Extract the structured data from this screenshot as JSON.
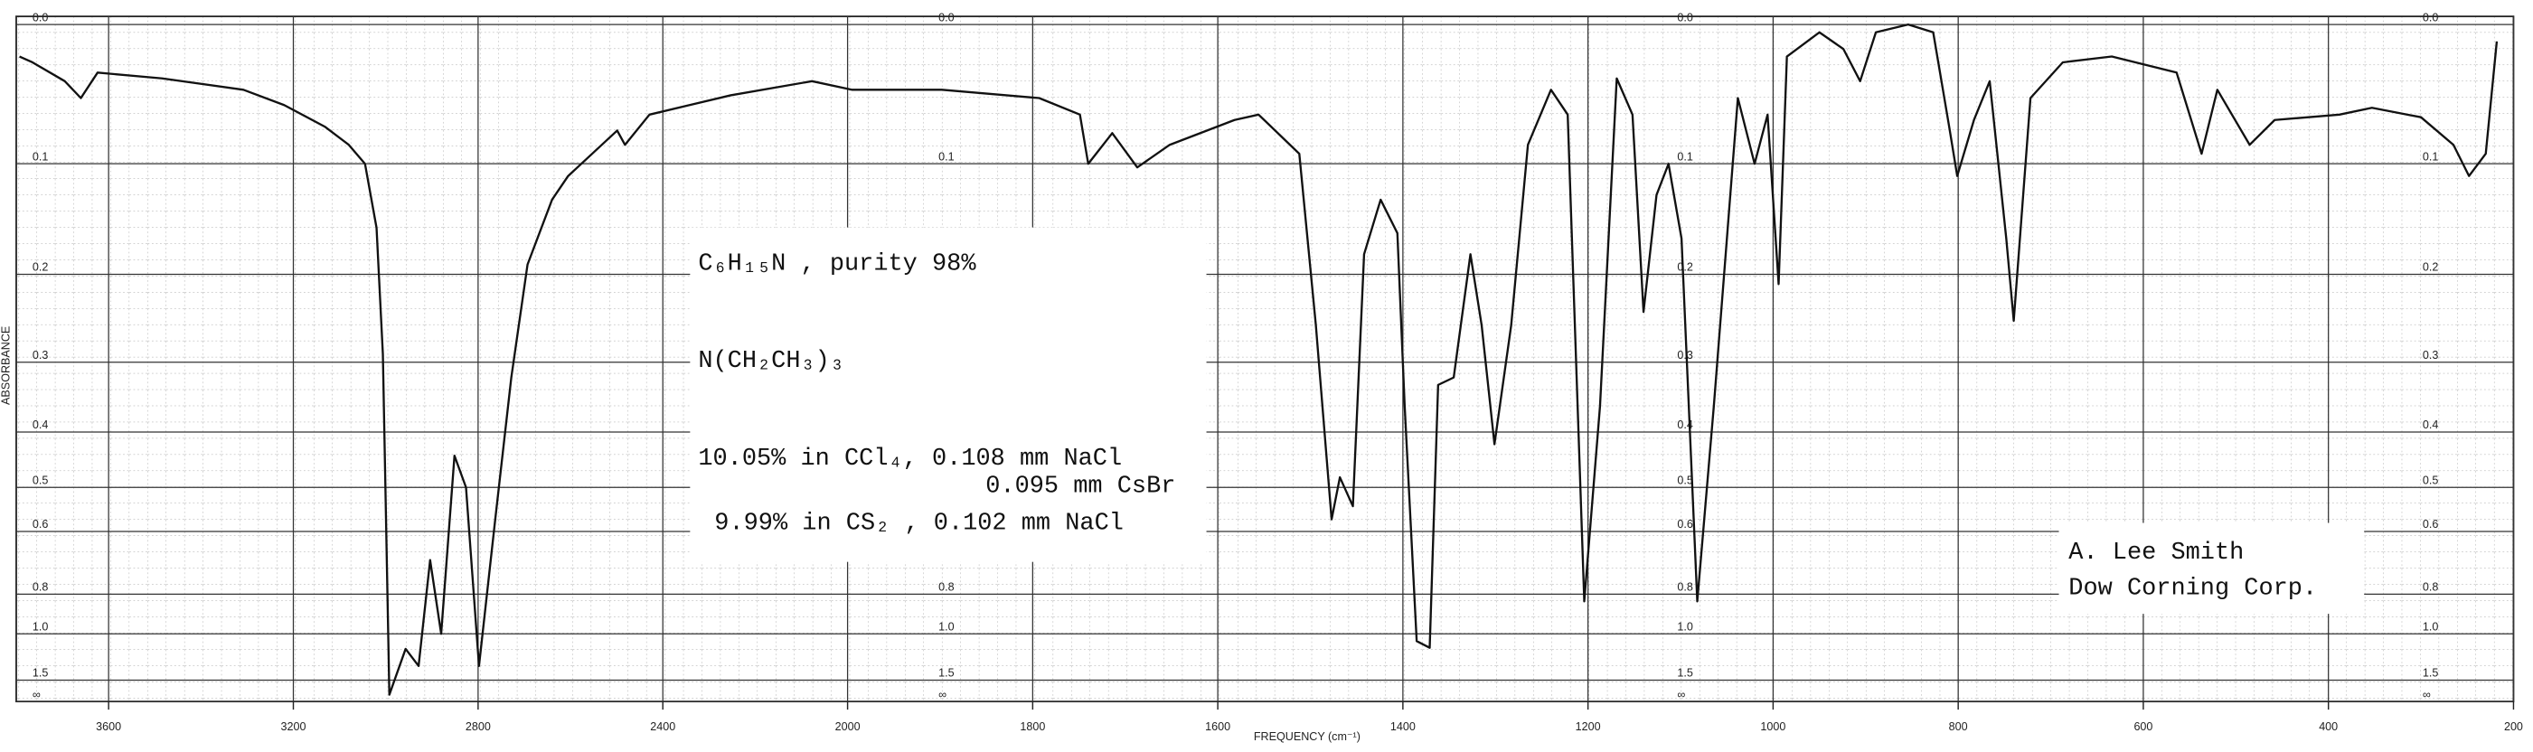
{
  "chart_data": {
    "type": "line",
    "xlabel": "FREQUENCY (cm⁻¹)",
    "ylabel": "ABSORBANCE",
    "xlim": [
      3800,
      200
    ],
    "x_scale_change": 2000,
    "xticks": [
      3600,
      3200,
      2800,
      2400,
      2000,
      1800,
      1600,
      1400,
      1200,
      1000,
      800,
      600,
      400,
      200
    ],
    "y_scale": "absorbance",
    "ylim": [
      0,
      null
    ],
    "yticks": [
      {
        "value": 0,
        "label": "0.0"
      },
      0.1,
      0.2,
      0.3,
      0.4,
      0.5,
      0.6,
      0.8,
      {
        "value": 1,
        "label": "1.0"
      },
      1.5,
      {
        "value": null,
        "label": "∞"
      }
    ],
    "grid": true,
    "annotations": [
      "C₆H₁₅N , purity 98%",
      "N(CH₂CH₃)₃",
      "10.05% in CCl₄, 0.108 mm NaCl",
      "0.095 mm CsBr",
      "9.99% in CS₂ , 0.102 mm NaCl",
      "A. Lee Smith",
      "Dow Corning Corp."
    ],
    "series": [
      {
        "color": "#111111",
        "x": [
          3793,
          3765,
          3695,
          3660,
          3624,
          3484,
          3308,
          3220,
          3132,
          3080,
          3045,
          3020,
          3006,
          2992,
          2957,
          2929,
          2904,
          2880,
          2851,
          2826,
          2798,
          2763,
          2728,
          2693,
          2640,
          2605,
          2499,
          2482,
          2429,
          2253,
          2077,
          1995,
          1898,
          1793,
          1749,
          1740,
          1714,
          1687,
          1652,
          1582,
          1556,
          1512,
          1494,
          1477,
          1468,
          1454,
          1442,
          1424,
          1406,
          1398,
          1385,
          1371,
          1362,
          1345,
          1327,
          1315,
          1301,
          1283,
          1265,
          1240,
          1222,
          1204,
          1187,
          1169,
          1152,
          1140,
          1126,
          1113,
          1099,
          1082,
          1064,
          1038,
          1020,
          1006,
          994,
          985,
          950,
          924,
          906,
          889,
          854,
          827,
          810,
          801,
          783,
          766,
          748,
          740,
          722,
          687,
          634,
          564,
          537,
          520,
          485,
          458,
          388,
          353,
          300,
          265,
          248,
          230,
          218
        ],
        "values": [
          0.021,
          0.025,
          0.038,
          0.05,
          0.032,
          0.036,
          0.044,
          0.055,
          0.071,
          0.085,
          0.1,
          0.155,
          0.29,
          2.0,
          1.11,
          1.28,
          0.68,
          1.0,
          0.44,
          0.5,
          1.28,
          0.57,
          0.32,
          0.19,
          0.13,
          0.11,
          0.074,
          0.085,
          0.062,
          0.048,
          0.038,
          0.044,
          0.044,
          0.05,
          0.062,
          0.1,
          0.076,
          0.103,
          0.085,
          0.066,
          0.062,
          0.092,
          0.255,
          0.57,
          0.48,
          0.54,
          0.18,
          0.13,
          0.16,
          0.36,
          1.05,
          1.1,
          0.33,
          0.32,
          0.18,
          0.255,
          0.42,
          0.255,
          0.085,
          0.044,
          0.062,
          0.83,
          0.36,
          0.036,
          0.062,
          0.24,
          0.126,
          0.1,
          0.165,
          0.83,
          0.36,
          0.05,
          0.1,
          0.062,
          0.21,
          0.021,
          0.005,
          0.016,
          0.038,
          0.005,
          0,
          0.005,
          0.07,
          0.11,
          0.066,
          0.038,
          0.165,
          0.25,
          0.05,
          0.025,
          0.021,
          0.032,
          0.092,
          0.044,
          0.085,
          0.066,
          0.062,
          0.057,
          0.064,
          0.085,
          0.11,
          0.092,
          0.011
        ]
      }
    ]
  }
}
